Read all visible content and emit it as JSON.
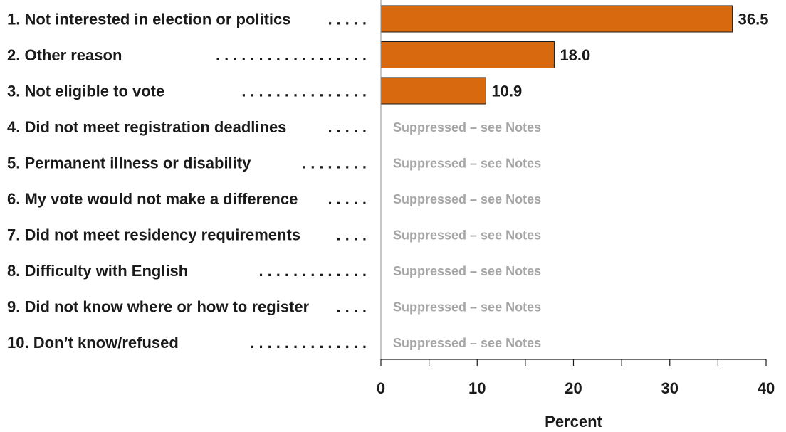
{
  "chart_data": {
    "type": "bar",
    "orientation": "horizontal",
    "categories": [
      "1. Not interested in election or politics",
      "2. Other reason",
      "3. Not eligible to vote",
      "4. Did not meet registration deadlines",
      "5. Permanent illness or disability",
      "6. My vote would not make a difference",
      "7. Did not meet residency requirements",
      "8. Difficulty with English",
      "9. Did not know where or how to register",
      "10. Don’t know/refused"
    ],
    "values": [
      36.5,
      18.0,
      10.9,
      null,
      null,
      null,
      null,
      null,
      null,
      null
    ],
    "value_labels": [
      "36.5",
      "18.0",
      "10.9",
      "",
      "",
      "",
      "",
      "",
      "",
      ""
    ],
    "suppressed_label": "Suppressed – see Notes",
    "xlabel": "Percent",
    "xlim": [
      0,
      40
    ],
    "xticks": [
      0,
      10,
      20,
      30,
      40
    ],
    "bar_color": "#d8690e",
    "suppressed_color": "#a6a6a6"
  }
}
